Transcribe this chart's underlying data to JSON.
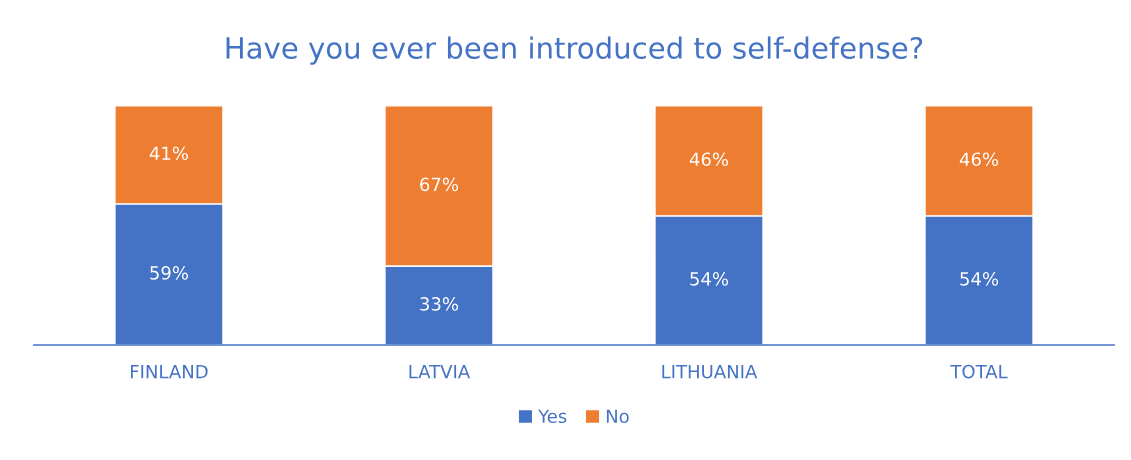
{
  "chart_data": {
    "type": "bar",
    "title": "Have you ever been introduced to self-defense?",
    "categories": [
      "FINLAND",
      "LATVIA",
      "LITHUANIA",
      "TOTAL"
    ],
    "series": [
      {
        "name": "Yes",
        "color": "#4472c4",
        "values": [
          59,
          33,
          54,
          54
        ],
        "value_labels": [
          "59%",
          "33%",
          "54%",
          "54%"
        ]
      },
      {
        "name": "No",
        "color": "#ed7d31",
        "values": [
          41,
          67,
          46,
          46
        ],
        "value_labels": [
          "41%",
          "67%",
          "46%",
          "46%"
        ]
      }
    ],
    "stacked": true,
    "tick_labels": "x",
    "legend": "bottom"
  }
}
